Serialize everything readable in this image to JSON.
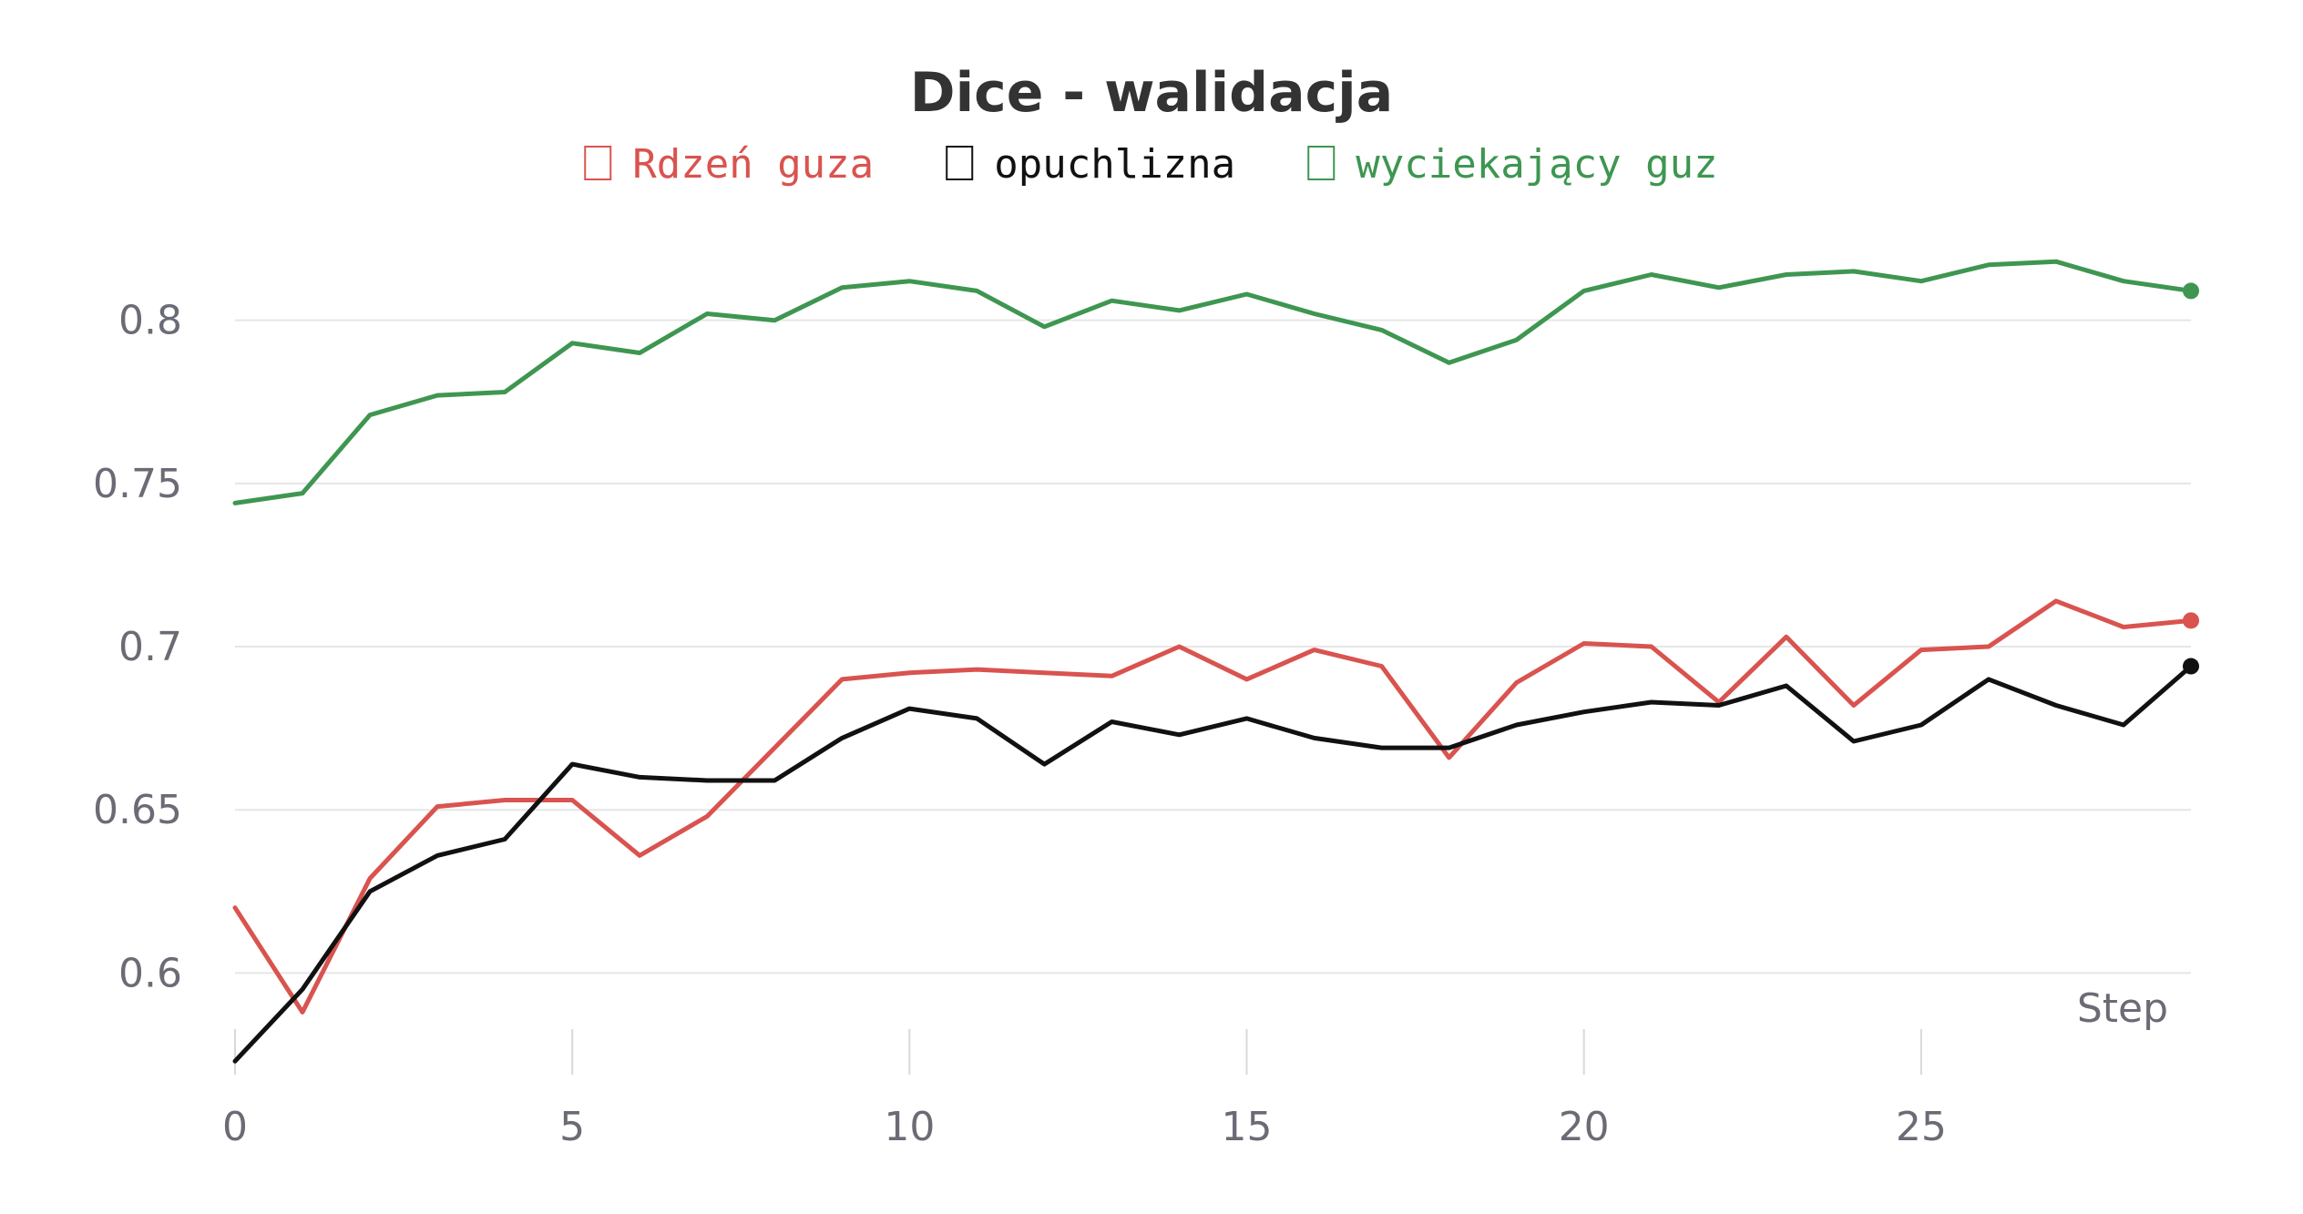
{
  "chart_data": {
    "type": "line",
    "title": "Dice - walidacja",
    "xlabel": "Step",
    "ylabel": "",
    "xlim": [
      0,
      29
    ],
    "ylim": [
      0.575,
      0.82
    ],
    "x_ticks": [
      0,
      5,
      10,
      15,
      20,
      25
    ],
    "x_tick_labels": [
      "0",
      "5",
      "10",
      "15",
      "20",
      "25"
    ],
    "y_ticks": [
      0.6,
      0.65,
      0.7,
      0.75,
      0.8
    ],
    "y_tick_labels": [
      "0.6",
      "0.65",
      "0.7",
      "0.75",
      "0.8"
    ],
    "grid": "horizontal",
    "legend_position": "top-center",
    "x": [
      0,
      1,
      2,
      3,
      4,
      5,
      6,
      7,
      8,
      9,
      10,
      11,
      12,
      13,
      14,
      15,
      16,
      17,
      18,
      19,
      20,
      21,
      22,
      23,
      24,
      25,
      26,
      27,
      28,
      29
    ],
    "series": [
      {
        "name": "Rdzeń guza",
        "color": "#d9534f",
        "values": [
          0.62,
          0.588,
          0.629,
          0.651,
          0.653,
          0.653,
          0.636,
          0.648,
          0.669,
          0.69,
          0.692,
          0.693,
          0.692,
          0.691,
          0.7,
          0.69,
          0.699,
          0.694,
          0.666,
          0.689,
          0.701,
          0.7,
          0.683,
          0.703,
          0.682,
          0.699,
          0.7,
          0.714,
          0.706,
          0.708
        ]
      },
      {
        "name": "opuchlizna",
        "color": "#111111",
        "values": [
          0.573,
          0.595,
          0.625,
          0.636,
          0.641,
          0.664,
          0.66,
          0.659,
          0.659,
          0.672,
          0.681,
          0.678,
          0.664,
          0.677,
          0.673,
          0.678,
          0.672,
          0.669,
          0.669,
          0.676,
          0.68,
          0.683,
          0.682,
          0.688,
          0.671,
          0.676,
          0.69,
          0.682,
          0.676,
          0.694
        ]
      },
      {
        "name": "wyciekający guz",
        "color": "#3e9651",
        "values": [
          0.744,
          0.747,
          0.771,
          0.777,
          0.778,
          0.793,
          0.79,
          0.802,
          0.8,
          0.81,
          0.812,
          0.809,
          0.798,
          0.806,
          0.803,
          0.808,
          0.802,
          0.797,
          0.787,
          0.794,
          0.809,
          0.814,
          0.81,
          0.814,
          0.815,
          0.812,
          0.817,
          0.818,
          0.812,
          0.809
        ]
      }
    ]
  }
}
